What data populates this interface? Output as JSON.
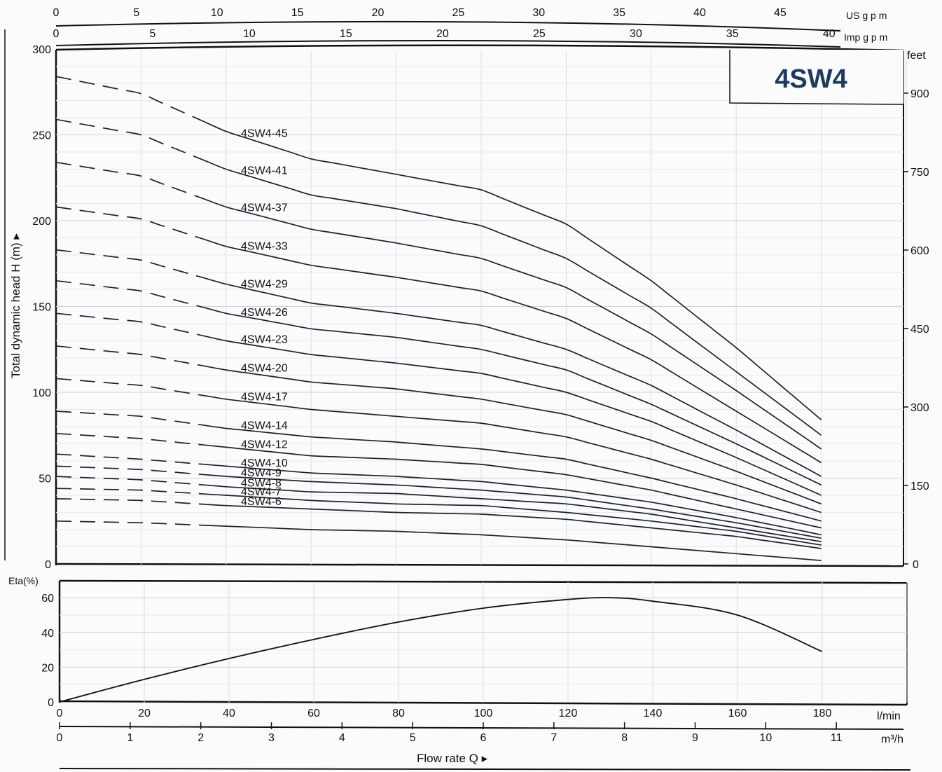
{
  "model_label": "4SW4",
  "units": {
    "us_gpm": "US g p m",
    "imp_gpm": "Imp g p m",
    "feet": "feet",
    "lmin": "l/min",
    "m3h": "m³/h",
    "eta": "Eta(%)"
  },
  "ylabel": "Total dynamic head H (m) ▸",
  "xlabel": "Flow rate Q ▸",
  "chart_data": [
    {
      "type": "line",
      "title": "4SW4",
      "xlabel": "Flow rate Q",
      "ylabel": "Total dynamic head H (m)",
      "x_unit": "l/min",
      "xlim": [
        0,
        200
      ],
      "ylim": [
        0,
        300
      ],
      "y_ticks": [
        0,
        50,
        100,
        150,
        200,
        250,
        300
      ],
      "right_axis": {
        "label": "feet",
        "ticks": [
          0,
          150,
          300,
          450,
          600,
          750,
          900
        ]
      },
      "top_axis_us_gpm": [
        0,
        5,
        10,
        15,
        20,
        25,
        30,
        35,
        40,
        45
      ],
      "top_axis_imp_gpm": [
        0,
        5,
        10,
        15,
        20,
        25,
        30,
        35,
        40
      ],
      "x_ticks_lmin": [
        0,
        20,
        40,
        60,
        80,
        100,
        120,
        140,
        160,
        180
      ],
      "x_ticks_m3h": [
        0,
        1,
        2,
        3,
        4,
        5,
        6,
        7,
        8,
        9,
        10,
        11
      ],
      "x": [
        0,
        20,
        40,
        60,
        80,
        100,
        120,
        140,
        160,
        180
      ],
      "dashed_until_x": 35,
      "series": [
        {
          "name": "4SW4-45",
          "values": [
            284,
            274,
            252,
            236,
            227,
            218,
            198,
            165,
            126,
            84
          ]
        },
        {
          "name": "4SW4-41",
          "values": [
            259,
            250,
            230,
            215,
            207,
            197,
            178,
            149,
            112,
            75
          ]
        },
        {
          "name": "4SW4-37",
          "values": [
            234,
            226,
            208,
            195,
            187,
            178,
            161,
            134,
            101,
            67
          ]
        },
        {
          "name": "4SW4-33",
          "values": [
            208,
            201,
            185,
            174,
            167,
            159,
            143,
            119,
            89,
            59
          ]
        },
        {
          "name": "4SW4-29",
          "values": [
            183,
            177,
            163,
            152,
            146,
            139,
            125,
            104,
            78,
            51
          ]
        },
        {
          "name": "4SW4-26",
          "values": [
            165,
            159,
            146,
            137,
            132,
            125,
            113,
            93,
            70,
            46
          ]
        },
        {
          "name": "4SW4-23",
          "values": [
            146,
            141,
            130,
            122,
            117,
            111,
            100,
            83,
            62,
            40
          ]
        },
        {
          "name": "4SW4-20",
          "values": [
            127,
            122,
            113,
            106,
            102,
            96,
            87,
            72,
            54,
            35
          ]
        },
        {
          "name": "4SW4-17",
          "values": [
            108,
            104,
            96,
            90,
            86,
            82,
            74,
            61,
            46,
            30
          ]
        },
        {
          "name": "4SW4-14",
          "values": [
            89,
            86,
            79,
            74,
            71,
            67,
            61,
            50,
            38,
            25
          ]
        },
        {
          "name": "4SW4-12",
          "values": [
            76,
            73,
            68,
            63,
            61,
            58,
            52,
            43,
            32,
            21
          ]
        },
        {
          "name": "4SW4-10",
          "values": [
            64,
            61,
            57,
            53,
            51,
            48,
            43,
            36,
            27,
            17
          ]
        },
        {
          "name": "4SW4-9",
          "values": [
            57,
            55,
            51,
            48,
            46,
            43,
            39,
            32,
            24,
            15
          ]
        },
        {
          "name": "4SW4-8",
          "values": [
            51,
            49,
            45,
            42,
            41,
            38,
            35,
            29,
            21,
            13
          ]
        },
        {
          "name": "4SW4-7",
          "values": [
            44,
            43,
            40,
            37,
            35,
            34,
            30,
            25,
            19,
            11
          ]
        },
        {
          "name": "4SW4-6",
          "values": [
            38,
            37,
            34,
            32,
            30,
            29,
            26,
            21,
            16,
            9
          ]
        },
        {
          "name": "",
          "values": [
            25,
            24,
            22,
            20,
            19,
            17,
            14,
            10,
            6,
            2
          ]
        }
      ]
    },
    {
      "type": "line",
      "ylabel": "Eta(%)",
      "x_unit": "l/min",
      "xlim": [
        0,
        200
      ],
      "ylim": [
        0,
        70
      ],
      "y_ticks": [
        0,
        20,
        40,
        60
      ],
      "x": [
        0,
        20,
        40,
        60,
        80,
        100,
        120,
        130,
        140,
        160,
        180
      ],
      "series": [
        {
          "name": "",
          "values": [
            0,
            13,
            25,
            36,
            46,
            54,
            59,
            60,
            58,
            50,
            29
          ]
        }
      ]
    }
  ]
}
